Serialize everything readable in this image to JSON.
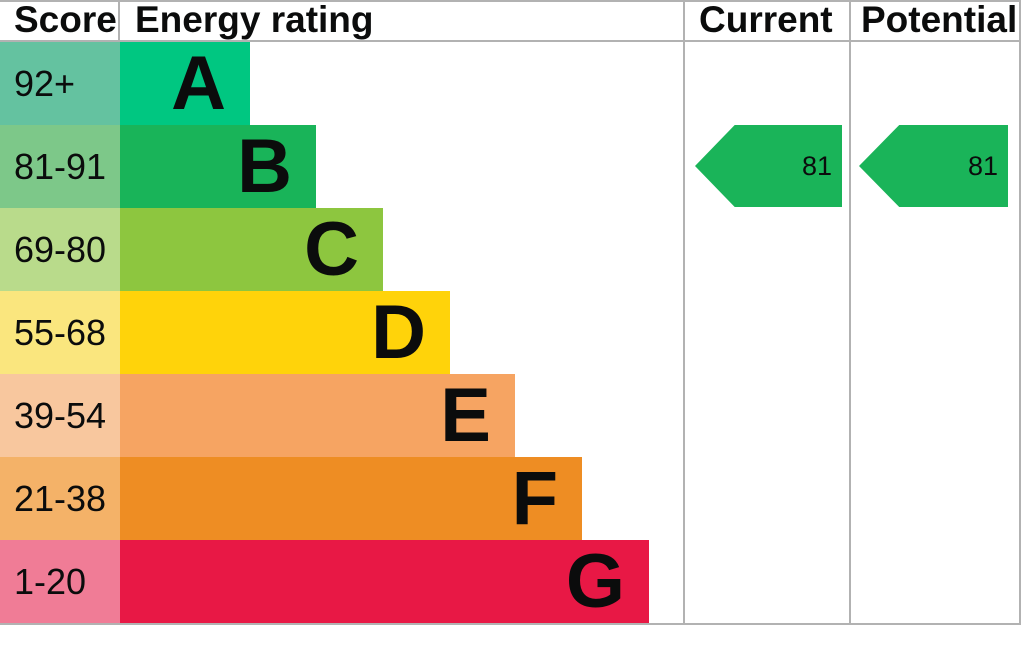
{
  "chart_data": {
    "type": "bar",
    "title": "Energy rating",
    "column_headers": {
      "score": "Score",
      "energy": "Energy rating",
      "current": "Current",
      "potential": "Potential"
    },
    "bands": [
      {
        "letter": "A",
        "score_range": "92+",
        "bar_color": "#00c781",
        "score_cell_color": "#64c2a0"
      },
      {
        "letter": "B",
        "score_range": "81-91",
        "bar_color": "#19b459",
        "score_cell_color": "#7dc889"
      },
      {
        "letter": "C",
        "score_range": "69-80",
        "bar_color": "#8dc63f",
        "score_cell_color": "#b9db8b"
      },
      {
        "letter": "D",
        "score_range": "55-68",
        "bar_color": "#ffd30a",
        "score_cell_color": "#fae67e"
      },
      {
        "letter": "E",
        "score_range": "39-54",
        "bar_color": "#f6a462",
        "score_cell_color": "#f8c79e"
      },
      {
        "letter": "F",
        "score_range": "21-38",
        "bar_color": "#ee8d23",
        "score_cell_color": "#f4b268"
      },
      {
        "letter": "G",
        "score_range": "1-20",
        "bar_color": "#e81845",
        "score_cell_color": "#f07c96"
      }
    ],
    "current": {
      "value": 81,
      "band": "B",
      "arrow_color": "#1ab459"
    },
    "potential": {
      "value": 81,
      "band": "B",
      "arrow_color": "#1ab459"
    }
  }
}
